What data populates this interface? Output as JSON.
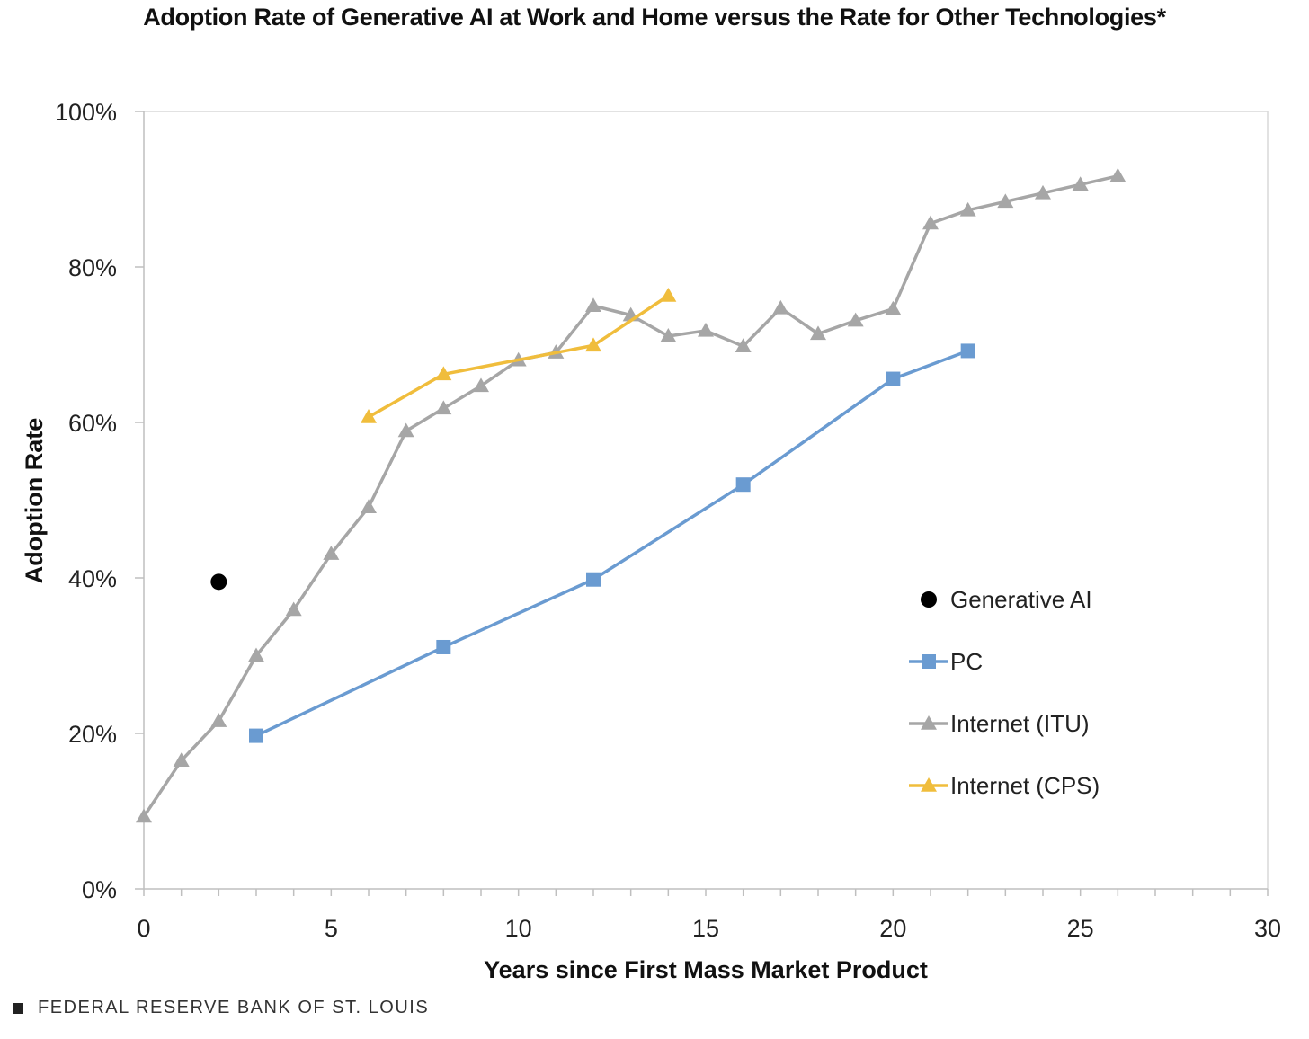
{
  "source": "FEDERAL RESERVE BANK OF ST. LOUIS",
  "chart_data": {
    "type": "line",
    "title": "Adoption Rate of Generative AI at Work and Home versus the Rate for Other Technologies*",
    "xlabel": "Years since First Mass Market Product",
    "ylabel": "Adoption Rate",
    "xlim": [
      0,
      30
    ],
    "ylim": [
      0,
      100
    ],
    "x_ticks": [
      "0",
      "5",
      "10",
      "15",
      "20",
      "25",
      "30"
    ],
    "y_ticks": [
      "0%",
      "20%",
      "40%",
      "60%",
      "80%",
      "100%"
    ],
    "grid": false,
    "legend_position": "right",
    "series": [
      {
        "name": "Generative AI",
        "marker": "circle",
        "color": "#000000",
        "line": false,
        "points": [
          [
            2,
            39.5
          ]
        ]
      },
      {
        "name": "PC",
        "marker": "square",
        "color": "#6a9bd1",
        "line": true,
        "points": [
          [
            3,
            19.7
          ],
          [
            8,
            31.1
          ],
          [
            12,
            39.8
          ],
          [
            16,
            52
          ],
          [
            20,
            65.6
          ],
          [
            22,
            69.2
          ]
        ]
      },
      {
        "name": "Internet (ITU)",
        "marker": "triangle",
        "color": "#a6a6a6",
        "line": true,
        "points": [
          [
            0,
            9.3
          ],
          [
            1,
            16.5
          ],
          [
            2,
            21.6
          ],
          [
            3,
            30
          ],
          [
            4,
            35.9
          ],
          [
            5,
            43.1
          ],
          [
            6,
            49.1
          ],
          [
            7,
            58.9
          ],
          [
            8,
            61.8
          ],
          [
            9,
            64.7
          ],
          [
            10,
            68
          ],
          [
            11,
            69
          ],
          [
            12,
            75
          ],
          [
            13,
            73.8
          ],
          [
            14,
            71.1
          ],
          [
            15,
            71.8
          ],
          [
            16,
            69.8
          ],
          [
            17,
            74.7
          ],
          [
            18,
            71.4
          ],
          [
            19,
            73.1
          ],
          [
            20,
            74.6
          ],
          [
            21,
            85.6
          ],
          [
            22,
            87.3
          ],
          [
            23,
            88.4
          ],
          [
            24,
            89.5
          ],
          [
            25,
            90.6
          ],
          [
            26,
            91.7
          ]
        ]
      },
      {
        "name": "Internet (CPS)",
        "marker": "triangle",
        "color": "#f0bd3c",
        "line": true,
        "points": [
          [
            6,
            60.7
          ],
          [
            8,
            66.2
          ],
          [
            12,
            69.9
          ],
          [
            14,
            76.3
          ]
        ]
      }
    ]
  }
}
